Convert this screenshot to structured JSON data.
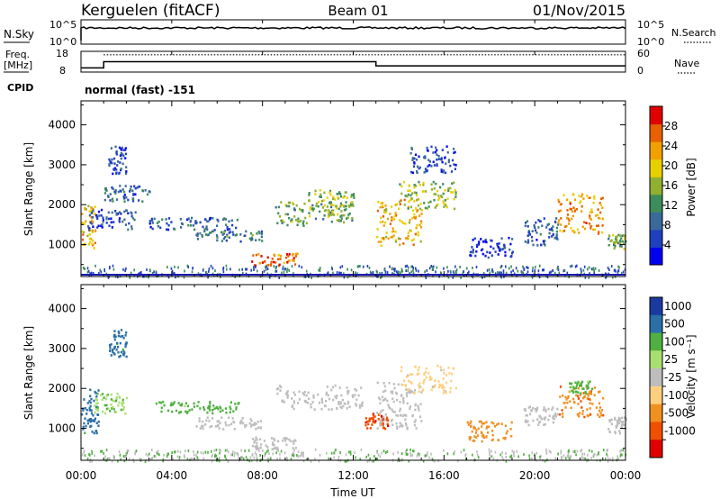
{
  "header": {
    "station": "Kerguelen (fitACF)",
    "beam": "Beam 01",
    "date": "01/Nov/2015"
  },
  "noise_panel": {
    "left_label": "N.Sky",
    "right_label": "N.Search",
    "ticks_left": [
      "10^5",
      "10^0"
    ],
    "ticks_right": [
      "10^5",
      "10^0"
    ]
  },
  "freq_panel": {
    "left_label_1": "Freq.",
    "left_label_2": "[MHz]",
    "ticks_left": [
      "18",
      "8"
    ],
    "right_label": "Nave",
    "ticks_right": [
      "60",
      "0"
    ]
  },
  "cpid": {
    "label": "CPID",
    "value": "normal (fast) -151"
  },
  "colors": {
    "power": [
      "#0000f0",
      "#2040c0",
      "#3a6a9a",
      "#3c8c5c",
      "#90b030",
      "#e8d000",
      "#f0a000",
      "#e86000",
      "#e00000"
    ],
    "velocity": [
      "#e00000",
      "#f05000",
      "#f09020",
      "#ffcf80",
      "#bdbdbd",
      "#a8e070",
      "#50b040",
      "#2a6fa8",
      "#1a3aa0"
    ],
    "ground_scatter": "#bdbdbd"
  },
  "chart_data": [
    {
      "type": "heatmap",
      "name": "power",
      "ylabel": "Slant Range [km]",
      "ylim": [
        200,
        4600
      ],
      "yticks": [
        "1000",
        "2000",
        "3000",
        "4000"
      ],
      "xlim": [
        "00:00",
        "24:00"
      ],
      "colorbar": {
        "label": "Power [dB]",
        "range": [
          0,
          32
        ],
        "ticks": [
          "4",
          "8",
          "12",
          "16",
          "20",
          "24",
          "28"
        ]
      },
      "echo_regions": [
        {
          "t": [
            0.0,
            0.6
          ],
          "r": [
            900,
            2000
          ],
          "level": 22
        },
        {
          "t": [
            0.2,
            2.5
          ],
          "r": [
            1400,
            1900
          ],
          "level": 6
        },
        {
          "t": [
            1.0,
            3.0
          ],
          "r": [
            2100,
            2500
          ],
          "level": 8
        },
        {
          "t": [
            1.2,
            2.0
          ],
          "r": [
            2800,
            3500
          ],
          "level": 6
        },
        {
          "t": [
            3.0,
            7.0
          ],
          "r": [
            1400,
            1700
          ],
          "level": 8
        },
        {
          "t": [
            5.0,
            8.0
          ],
          "r": [
            1100,
            1400
          ],
          "level": 10
        },
        {
          "t": [
            7.5,
            9.5
          ],
          "r": [
            500,
            800
          ],
          "level": 26
        },
        {
          "t": [
            8.5,
            12.0
          ],
          "r": [
            1500,
            2100
          ],
          "level": 14
        },
        {
          "t": [
            10.0,
            12.0
          ],
          "r": [
            1700,
            2400
          ],
          "level": 16
        },
        {
          "t": [
            13.0,
            15.0
          ],
          "r": [
            1000,
            2200
          ],
          "level": 22
        },
        {
          "t": [
            14.0,
            16.5
          ],
          "r": [
            1900,
            2600
          ],
          "level": 16
        },
        {
          "t": [
            14.5,
            16.5
          ],
          "r": [
            2800,
            3500
          ],
          "level": 6
        },
        {
          "t": [
            17.0,
            19.0
          ],
          "r": [
            700,
            1200
          ],
          "level": 4
        },
        {
          "t": [
            19.5,
            21.0
          ],
          "r": [
            1000,
            1700
          ],
          "level": 8
        },
        {
          "t": [
            21.0,
            23.0
          ],
          "r": [
            1300,
            2300
          ],
          "level": 24
        },
        {
          "t": [
            23.2,
            24.0
          ],
          "r": [
            900,
            1300
          ],
          "level": 14
        }
      ]
    },
    {
      "type": "heatmap",
      "name": "velocity",
      "ylabel": "Slant Range [km]",
      "xlabel": "Time UT",
      "ylim": [
        200,
        4600
      ],
      "yticks": [
        "1000",
        "2000",
        "3000",
        "4000"
      ],
      "xlim": [
        "00:00",
        "24:00"
      ],
      "xticks": [
        "00:00",
        "04:00",
        "08:00",
        "12:00",
        "16:00",
        "20:00",
        "00:00"
      ],
      "colorbar": {
        "label": "Velocity [m s⁻¹]",
        "ticks": [
          "1000",
          "500",
          "100",
          "25",
          "-25",
          "-100",
          "-500",
          "-1000"
        ]
      },
      "echo_regions": [
        {
          "t": [
            0.0,
            0.8
          ],
          "r": [
            900,
            2000
          ],
          "vel": 700
        },
        {
          "t": [
            0.5,
            2.0
          ],
          "r": [
            1400,
            1900
          ],
          "vel": 80
        },
        {
          "t": [
            1.2,
            2.0
          ],
          "r": [
            2800,
            3500
          ],
          "vel": 700
        },
        {
          "t": [
            3.0,
            7.0
          ],
          "r": [
            1400,
            1700
          ],
          "vel": 150
        },
        {
          "t": [
            5.0,
            8.0
          ],
          "r": [
            1000,
            1300
          ],
          "vel": 0
        },
        {
          "t": [
            7.5,
            9.5
          ],
          "r": [
            500,
            800
          ],
          "vel": 0
        },
        {
          "t": [
            8.5,
            12.5
          ],
          "r": [
            1500,
            2100
          ],
          "vel": 0
        },
        {
          "t": [
            12.5,
            13.5
          ],
          "r": [
            1000,
            1400
          ],
          "vel": -800
        },
        {
          "t": [
            13.0,
            15.0
          ],
          "r": [
            1000,
            2200
          ],
          "vel": 0
        },
        {
          "t": [
            14.0,
            16.5
          ],
          "r": [
            1900,
            2600
          ],
          "vel": -60
        },
        {
          "t": [
            17.0,
            19.0
          ],
          "r": [
            700,
            1200
          ],
          "vel": -200
        },
        {
          "t": [
            19.5,
            21.0
          ],
          "r": [
            1100,
            1600
          ],
          "vel": 0
        },
        {
          "t": [
            21.0,
            23.0
          ],
          "r": [
            1300,
            2100
          ],
          "vel": -400
        },
        {
          "t": [
            21.5,
            22.5
          ],
          "r": [
            1900,
            2200
          ],
          "vel": 150
        },
        {
          "t": [
            23.2,
            24.0
          ],
          "r": [
            900,
            1300
          ],
          "vel": 0
        }
      ]
    }
  ],
  "frequency_mhz": [
    {
      "t": [
        0,
        1
      ],
      "value": 10
    },
    {
      "t": [
        1,
        13
      ],
      "value": 13
    },
    {
      "t": [
        13,
        24
      ],
      "value": 11
    }
  ],
  "nave": 50
}
